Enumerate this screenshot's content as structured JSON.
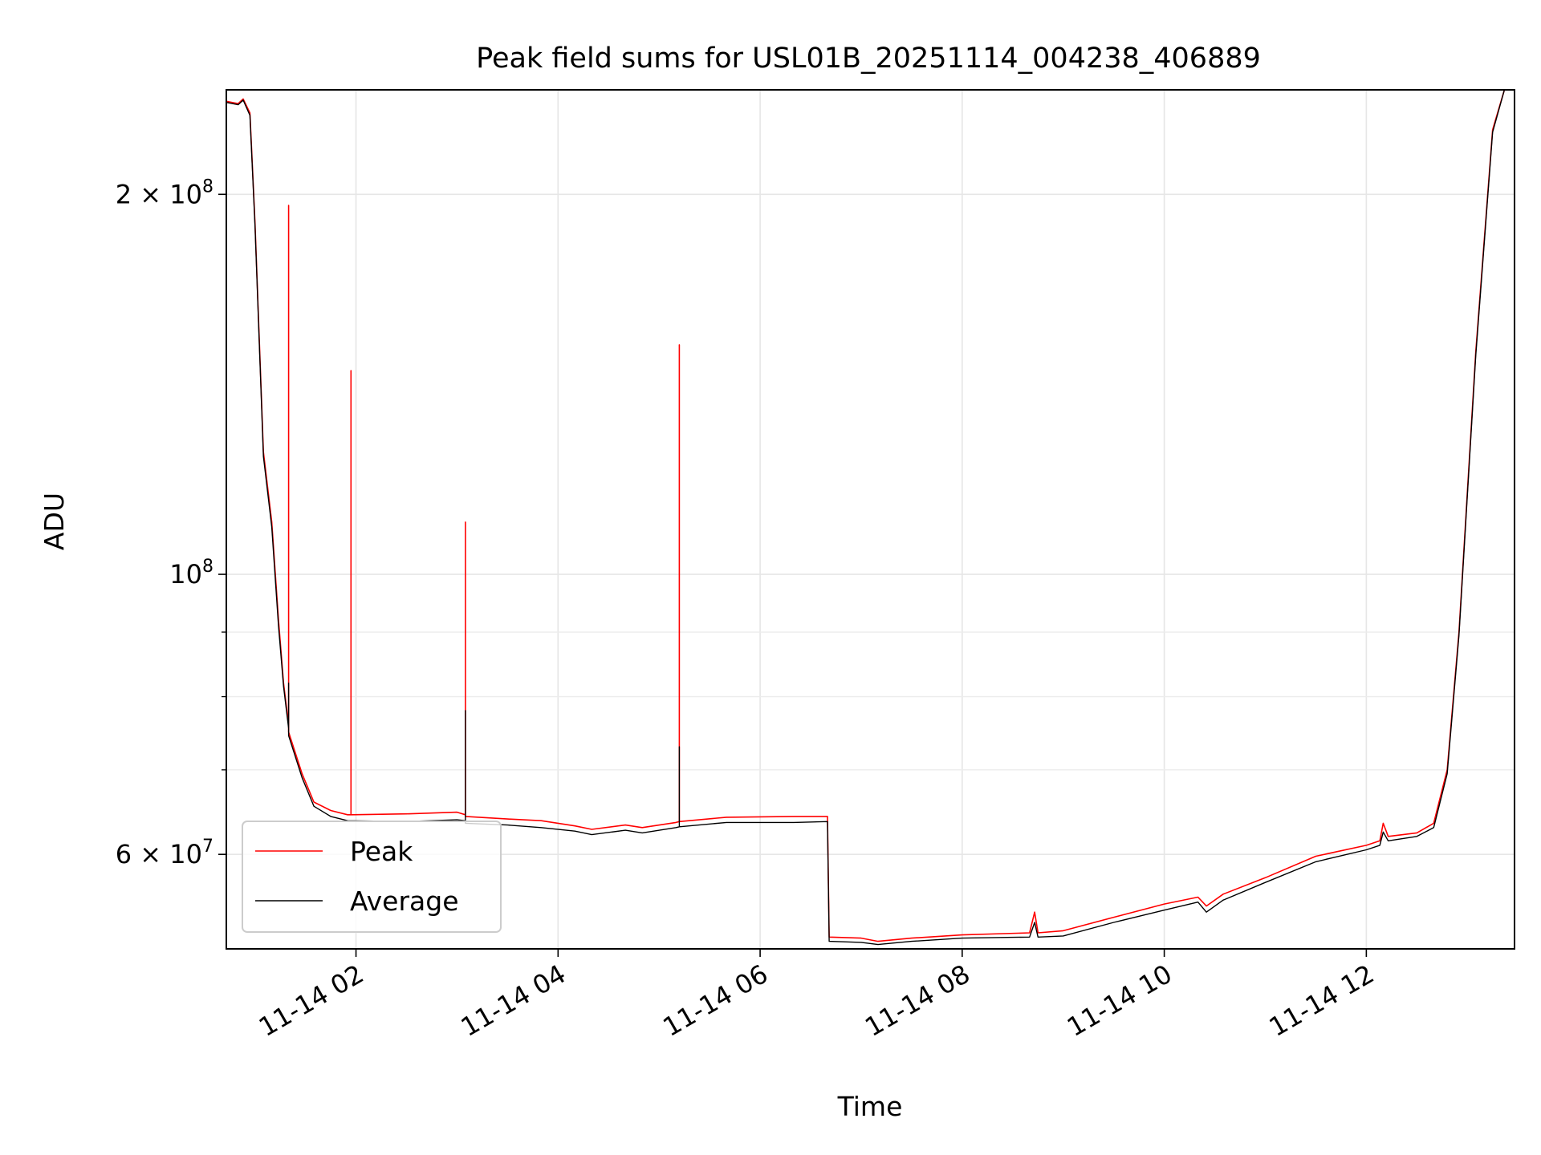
{
  "chart_data": {
    "type": "line",
    "title": "Peak field sums for USL01B_20251114_004238_406889",
    "xlabel": "Time",
    "ylabel": "ADU",
    "yscale": "log",
    "grid": true,
    "legend": "lower-left",
    "xlim": [
      "2025-11-14T00:43",
      "2025-11-14T13:28"
    ],
    "ylim": [
      50500000,
      242000000
    ],
    "xticks": [
      {
        "value": "2025-11-14T02:00",
        "label": "11-14 02"
      },
      {
        "value": "2025-11-14T04:00",
        "label": "11-14 04"
      },
      {
        "value": "2025-11-14T06:00",
        "label": "11-14 06"
      },
      {
        "value": "2025-11-14T08:00",
        "label": "11-14 08"
      },
      {
        "value": "2025-11-14T10:00",
        "label": "11-14 10"
      },
      {
        "value": "2025-11-14T12:00",
        "label": "11-14 12"
      }
    ],
    "yticks": [
      {
        "value": 200000000,
        "base": "2 × 10",
        "exp": "8"
      },
      {
        "value": 100000000,
        "base": "10",
        "exp": "8"
      },
      {
        "value": 60000000,
        "base": "6 × 10",
        "exp": "7"
      }
    ],
    "yminor": [
      70000000,
      80000000,
      90000000
    ],
    "series": [
      {
        "name": "Peak",
        "color": "#ff0000",
        "points": [
          [
            "2025-11-14T00:43",
            237000000
          ],
          [
            "2025-11-14T00:50",
            236000000
          ],
          [
            "2025-11-14T00:53",
            238000000
          ],
          [
            "2025-11-14T00:57",
            232000000
          ],
          [
            "2025-11-14T01:00",
            190000000
          ],
          [
            "2025-11-14T01:05",
            125000000
          ],
          [
            "2025-11-14T01:10",
            110000000
          ],
          [
            "2025-11-14T01:14",
            92000000
          ],
          [
            "2025-11-14T01:17",
            82000000
          ],
          [
            "2025-11-14T01:20",
            76000000
          ],
          [
            "2025-11-14T01:20",
            196000000
          ],
          [
            "2025-11-14T01:20",
            75000000
          ],
          [
            "2025-11-14T01:28",
            69500000
          ],
          [
            "2025-11-14T01:35",
            66000000
          ],
          [
            "2025-11-14T01:45",
            65000000
          ],
          [
            "2025-11-14T01:55",
            64500000
          ],
          [
            "2025-11-14T01:57",
            64500000
          ],
          [
            "2025-11-14T01:57",
            145000000
          ],
          [
            "2025-11-14T01:57",
            64500000
          ],
          [
            "2025-11-14T02:30",
            64600000
          ],
          [
            "2025-11-14T03:00",
            64800000
          ],
          [
            "2025-11-14T03:05",
            64500000
          ],
          [
            "2025-11-14T03:05",
            110000000
          ],
          [
            "2025-11-14T03:05",
            64300000
          ],
          [
            "2025-11-14T03:30",
            64000000
          ],
          [
            "2025-11-14T03:50",
            63800000
          ],
          [
            "2025-11-14T04:10",
            63200000
          ],
          [
            "2025-11-14T04:20",
            62800000
          ],
          [
            "2025-11-14T04:40",
            63300000
          ],
          [
            "2025-11-14T04:50",
            63000000
          ],
          [
            "2025-11-14T05:10",
            63600000
          ],
          [
            "2025-11-14T05:12",
            63700000
          ],
          [
            "2025-11-14T05:12",
            152000000
          ],
          [
            "2025-11-14T05:12",
            63700000
          ],
          [
            "2025-11-14T05:40",
            64200000
          ],
          [
            "2025-11-14T06:20",
            64300000
          ],
          [
            "2025-11-14T06:40",
            64300000
          ],
          [
            "2025-11-14T06:41",
            51600000
          ],
          [
            "2025-11-14T07:00",
            51500000
          ],
          [
            "2025-11-14T07:10",
            51200000
          ],
          [
            "2025-11-14T07:30",
            51500000
          ],
          [
            "2025-11-14T08:00",
            51800000
          ],
          [
            "2025-11-14T08:40",
            52000000
          ],
          [
            "2025-11-14T08:43",
            54000000
          ],
          [
            "2025-11-14T08:45",
            52000000
          ],
          [
            "2025-11-14T09:00",
            52200000
          ],
          [
            "2025-11-14T09:30",
            53500000
          ],
          [
            "2025-11-14T10:00",
            54800000
          ],
          [
            "2025-11-14T10:20",
            55500000
          ],
          [
            "2025-11-14T10:25",
            54600000
          ],
          [
            "2025-11-14T10:35",
            55800000
          ],
          [
            "2025-11-14T11:00",
            57500000
          ],
          [
            "2025-11-14T11:30",
            59800000
          ],
          [
            "2025-11-14T12:00",
            61000000
          ],
          [
            "2025-11-14T12:08",
            61500000
          ],
          [
            "2025-11-14T12:10",
            63500000
          ],
          [
            "2025-11-14T12:13",
            62000000
          ],
          [
            "2025-11-14T12:30",
            62400000
          ],
          [
            "2025-11-14T12:40",
            63500000
          ],
          [
            "2025-11-14T12:48",
            70000000
          ],
          [
            "2025-11-14T12:55",
            90000000
          ],
          [
            "2025-11-14T13:05",
            150000000
          ],
          [
            "2025-11-14T13:15",
            225000000
          ],
          [
            "2025-11-14T13:22",
            242000000
          ]
        ]
      },
      {
        "name": "Average",
        "color": "#000000",
        "points": [
          [
            "2025-11-14T00:43",
            236500000
          ],
          [
            "2025-11-14T00:50",
            235500000
          ],
          [
            "2025-11-14T00:53",
            237500000
          ],
          [
            "2025-11-14T00:57",
            231000000
          ],
          [
            "2025-11-14T01:00",
            189000000
          ],
          [
            "2025-11-14T01:05",
            124000000
          ],
          [
            "2025-11-14T01:10",
            109000000
          ],
          [
            "2025-11-14T01:14",
            91000000
          ],
          [
            "2025-11-14T01:17",
            81500000
          ],
          [
            "2025-11-14T01:20",
            75500000
          ],
          [
            "2025-11-14T01:20",
            82000000
          ],
          [
            "2025-11-14T01:20",
            74500000
          ],
          [
            "2025-11-14T01:28",
            69000000
          ],
          [
            "2025-11-14T01:35",
            65500000
          ],
          [
            "2025-11-14T01:45",
            64300000
          ],
          [
            "2025-11-14T01:55",
            63800000
          ],
          [
            "2025-11-14T02:30",
            63700000
          ],
          [
            "2025-11-14T03:00",
            63900000
          ],
          [
            "2025-11-14T03:05",
            63800000
          ],
          [
            "2025-11-14T03:05",
            78000000
          ],
          [
            "2025-11-14T03:05",
            63500000
          ],
          [
            "2025-11-14T03:30",
            63300000
          ],
          [
            "2025-11-14T03:50",
            63000000
          ],
          [
            "2025-11-14T04:10",
            62600000
          ],
          [
            "2025-11-14T04:20",
            62200000
          ],
          [
            "2025-11-14T04:40",
            62700000
          ],
          [
            "2025-11-14T04:50",
            62400000
          ],
          [
            "2025-11-14T05:10",
            63000000
          ],
          [
            "2025-11-14T05:12",
            63100000
          ],
          [
            "2025-11-14T05:12",
            73000000
          ],
          [
            "2025-11-14T05:12",
            63100000
          ],
          [
            "2025-11-14T05:40",
            63600000
          ],
          [
            "2025-11-14T06:20",
            63600000
          ],
          [
            "2025-11-14T06:40",
            63700000
          ],
          [
            "2025-11-14T06:41",
            51200000
          ],
          [
            "2025-11-14T07:00",
            51100000
          ],
          [
            "2025-11-14T07:10",
            50900000
          ],
          [
            "2025-11-14T07:30",
            51200000
          ],
          [
            "2025-11-14T08:00",
            51500000
          ],
          [
            "2025-11-14T08:40",
            51600000
          ],
          [
            "2025-11-14T08:43",
            53000000
          ],
          [
            "2025-11-14T08:45",
            51600000
          ],
          [
            "2025-11-14T09:00",
            51700000
          ],
          [
            "2025-11-14T09:30",
            53000000
          ],
          [
            "2025-11-14T10:00",
            54200000
          ],
          [
            "2025-11-14T10:20",
            55000000
          ],
          [
            "2025-11-14T10:25",
            54000000
          ],
          [
            "2025-11-14T10:35",
            55200000
          ],
          [
            "2025-11-14T11:00",
            57000000
          ],
          [
            "2025-11-14T11:30",
            59200000
          ],
          [
            "2025-11-14T12:00",
            60500000
          ],
          [
            "2025-11-14T12:08",
            61000000
          ],
          [
            "2025-11-14T12:10",
            62500000
          ],
          [
            "2025-11-14T12:13",
            61500000
          ],
          [
            "2025-11-14T12:30",
            62000000
          ],
          [
            "2025-11-14T12:40",
            63000000
          ],
          [
            "2025-11-14T12:48",
            69500000
          ],
          [
            "2025-11-14T12:55",
            89500000
          ],
          [
            "2025-11-14T13:05",
            149000000
          ],
          [
            "2025-11-14T13:15",
            224000000
          ],
          [
            "2025-11-14T13:22",
            242000000
          ]
        ]
      }
    ]
  }
}
